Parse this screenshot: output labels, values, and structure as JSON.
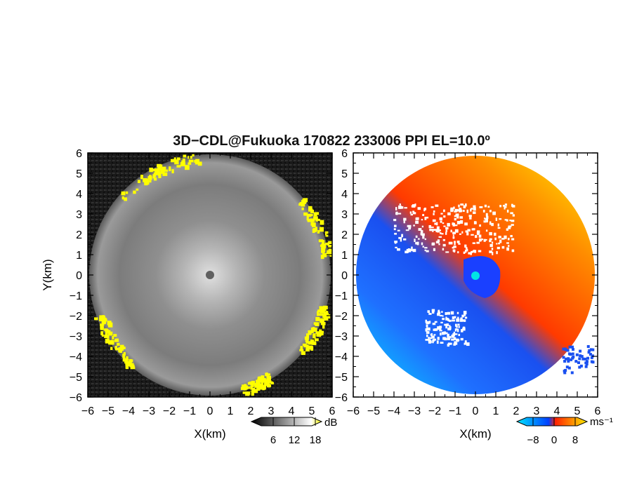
{
  "chart_data": {
    "title": "3D−CDL@Fukuoka 170822 233006 PPI EL=10.0º",
    "panels": [
      {
        "type": "heatmap",
        "name": "",
        "xlabel": "X(km)",
        "ylabel": "Y(km)",
        "xlim": [
          -6,
          6
        ],
        "ylim": [
          -6,
          6
        ],
        "xticks": [
          "−6",
          "−5",
          "−4",
          "−3",
          "−2",
          "−1",
          "0",
          "1",
          "2",
          "3",
          "4",
          "5",
          "6"
        ],
        "yticks": [
          "6",
          "5",
          "4",
          "3",
          "2",
          "1",
          "0",
          "−1",
          "−2",
          "−3",
          "−4",
          "−5",
          "−6"
        ],
        "colorbar": {
          "ticks": [
            "6",
            "12",
            "18"
          ],
          "unit": "dB",
          "colors": [
            "#000000",
            "#ffffff",
            "#ffff00"
          ]
        },
        "colors": {
          "background": "#1c1c1c",
          "field": "#8a8a8a",
          "center": "#dcdcdc",
          "marker": "#606060",
          "highlight": "#ffff00"
        }
      },
      {
        "type": "heatmap",
        "name": "",
        "xlim": [
          -6,
          6
        ],
        "ylim": [
          -6,
          6
        ],
        "xlabel": "X(km)",
        "xticks": [
          "−6",
          "−5",
          "−4",
          "−3",
          "−2",
          "−1",
          "0",
          "1",
          "2",
          "3",
          "4",
          "5",
          "6"
        ],
        "colorbar": {
          "ticks": [
            "−8",
            "0",
            "8"
          ],
          "unit": "ms⁻¹",
          "colors": [
            "#00e5ff",
            "#0044ff",
            "#ff2200",
            "#ffee00"
          ]
        },
        "colors": {
          "positive": "#ff4a00",
          "positive_far": "#ffcc00",
          "negative": "#1a5cff",
          "negative_far": "#00d8ff",
          "marker": "#00e5e5"
        }
      }
    ]
  }
}
